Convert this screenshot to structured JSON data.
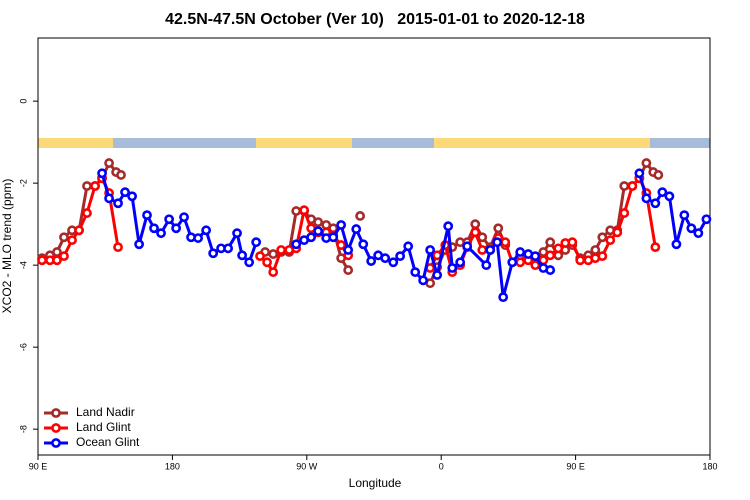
{
  "chart_data": {
    "type": "line",
    "title": "42.5N-47.5N October (Ver 10)   2015-01-01 to 2020-12-18",
    "x_label": "Longitude",
    "y_label": "XCO2 - MLO trend (ppm)",
    "xlim": [
      90,
      540
    ],
    "ylim": [
      -8.63,
      1.54
    ],
    "xticks": [
      {
        "value": 90,
        "label": "90 E"
      },
      {
        "value": 180,
        "label": "180"
      },
      {
        "value": 270,
        "label": "90 W"
      },
      {
        "value": 360,
        "label": "0"
      },
      {
        "value": 450,
        "label": "90 E"
      },
      {
        "value": 540,
        "label": "180"
      }
    ],
    "yticks": [
      0,
      -2,
      -4,
      -6,
      -8
    ],
    "legend": "bottomleft",
    "series": [
      {
        "name": "Land Nadir",
        "color": "#a52a2a",
        "x": [
          92.7,
          98,
          102.7,
          107.4,
          112.8,
          117.5,
          122.8,
          128.2,
          132.9,
          137.6,
          142.3,
          145.6,
          null,
          242.1,
          247.5,
          252.8,
          258.2,
          262.9,
          268.2,
          272.9,
          277.6,
          283,
          287.7,
          293,
          297.7,
          null,
          305.7,
          null,
          352.6,
          357.3,
          362.7,
          367.4,
          372.7,
          377.4,
          382.8,
          387.5,
          392.8,
          398.2,
          402.9,
          null,
          412.9,
          418.3,
          423,
          428.4,
          433,
          438.4,
          443.1,
          447.8,
          453.1,
          458.5,
          463.2,
          467.9,
          473.2,
          477.9,
          482.6,
          488,
          492.7,
          497.4,
          502,
          505.4
        ],
        "values": [
          -3.83,
          -3.76,
          -3.68,
          -3.32,
          -3.15,
          -3.15,
          -2.07,
          -2.07,
          -1.88,
          -1.51,
          -1.73,
          -1.8,
          null,
          -3.68,
          -3.73,
          -3.68,
          -3.68,
          -2.68,
          -2.68,
          -2.88,
          -2.95,
          -3.02,
          -3.1,
          -3.83,
          -4.12,
          null,
          -2.8,
          null,
          -4.44,
          -4.05,
          -3.63,
          -3.56,
          -3.44,
          -3.44,
          -3.0,
          -3.32,
          -3.56,
          -3.1,
          -3.51,
          null,
          -3.76,
          -3.76,
          -3.88,
          -3.68,
          -3.44,
          -3.76,
          -3.63,
          -3.51,
          -3.83,
          -3.76,
          -3.63,
          -3.32,
          -3.15,
          -3.15,
          -2.07,
          -2.07,
          -1.88,
          -1.51,
          -1.73,
          -1.8
        ]
      },
      {
        "name": "Land Glint",
        "color": "#ff0000",
        "x": [
          92.7,
          98,
          102.7,
          107.4,
          112.8,
          117.5,
          122.8,
          128.2,
          132.9,
          137.6,
          143.6,
          null,
          238.7,
          243.4,
          247.5,
          252.8,
          258.2,
          262.9,
          268.2,
          272.9,
          277.6,
          283,
          287.7,
          293,
          297.7,
          null,
          352.6,
          357.3,
          362.7,
          367.4,
          372.7,
          377.4,
          382.8,
          387.5,
          392.8,
          398.2,
          402.9,
          407.6,
          412.9,
          418.3,
          423,
          428.4,
          433,
          438.4,
          443.1,
          447.8,
          453.1,
          458.5,
          463.2,
          467.9,
          473.2,
          477.9,
          482.6,
          488,
          492.7,
          497.4,
          503.4
        ],
        "values": [
          -3.88,
          -3.88,
          -3.88,
          -3.78,
          -3.39,
          -3.15,
          -2.73,
          -2.07,
          -1.88,
          -2.24,
          -3.56,
          null,
          -3.78,
          -3.93,
          -4.17,
          -3.63,
          -3.63,
          -3.59,
          -2.66,
          -3.1,
          -3.2,
          -3.2,
          -3.27,
          -3.51,
          -3.76,
          null,
          -4.07,
          -3.76,
          -3.51,
          -4.17,
          -4.0,
          -3.56,
          -3.2,
          -3.63,
          -3.63,
          -3.34,
          -3.44,
          -3.93,
          -3.93,
          -3.88,
          -4.0,
          -3.88,
          -3.76,
          -3.59,
          -3.46,
          -3.44,
          -3.88,
          -3.88,
          -3.83,
          -3.78,
          -3.39,
          -3.2,
          -2.73,
          -2.07,
          -1.88,
          -2.24,
          -3.56
        ]
      },
      {
        "name": "Ocean Glint",
        "color": "#0000ff",
        "x": [
          132.9,
          137.6,
          143.6,
          148.3,
          153,
          157.7,
          163,
          167.7,
          172.4,
          177.8,
          182.5,
          187.8,
          192.5,
          197.2,
          202.6,
          207.3,
          212.6,
          217.3,
          223.3,
          226.7,
          231.4,
          236.1,
          null,
          262.9,
          268.2,
          272.9,
          277.6,
          283,
          287.7,
          293,
          297.7,
          303.1,
          307.8,
          313.1,
          317.8,
          322.5,
          327.9,
          332.5,
          337.9,
          342.6,
          347.9,
          352.6,
          357.3,
          364.7,
          367.4,
          372.7,
          377.4,
          390.2,
          392.8,
          397.5,
          401.5,
          407.6,
          412.9,
          418.3,
          423,
          428.4,
          433,
          null,
          492.7,
          497.4,
          503.4,
          508.1,
          512.8,
          517.5,
          522.8,
          527.5,
          532.2,
          537.6
        ],
        "values": [
          -1.76,
          -2.37,
          -2.49,
          -2.22,
          -2.32,
          -3.49,
          -2.78,
          -3.1,
          -3.22,
          -2.88,
          -3.1,
          -2.83,
          -3.32,
          -3.34,
          -3.15,
          -3.71,
          -3.59,
          -3.59,
          -3.22,
          -3.76,
          -3.93,
          -3.44,
          null,
          -3.49,
          -3.39,
          -3.32,
          -3.17,
          -3.34,
          -3.32,
          -3.02,
          -3.63,
          -3.12,
          -3.49,
          -3.9,
          -3.76,
          -3.83,
          -3.93,
          -3.78,
          -3.54,
          -4.17,
          -4.37,
          -3.63,
          -4.24,
          -3.05,
          -4.07,
          -3.93,
          -3.54,
          -4.0,
          -3.63,
          -3.44,
          -4.78,
          -3.93,
          -3.68,
          -3.73,
          -3.78,
          -4.07,
          -4.12,
          null,
          -1.76,
          -2.37,
          -2.49,
          -2.22,
          -2.32,
          -3.49,
          -2.78,
          -3.1,
          -3.22,
          -2.88
        ]
      }
    ]
  }
}
